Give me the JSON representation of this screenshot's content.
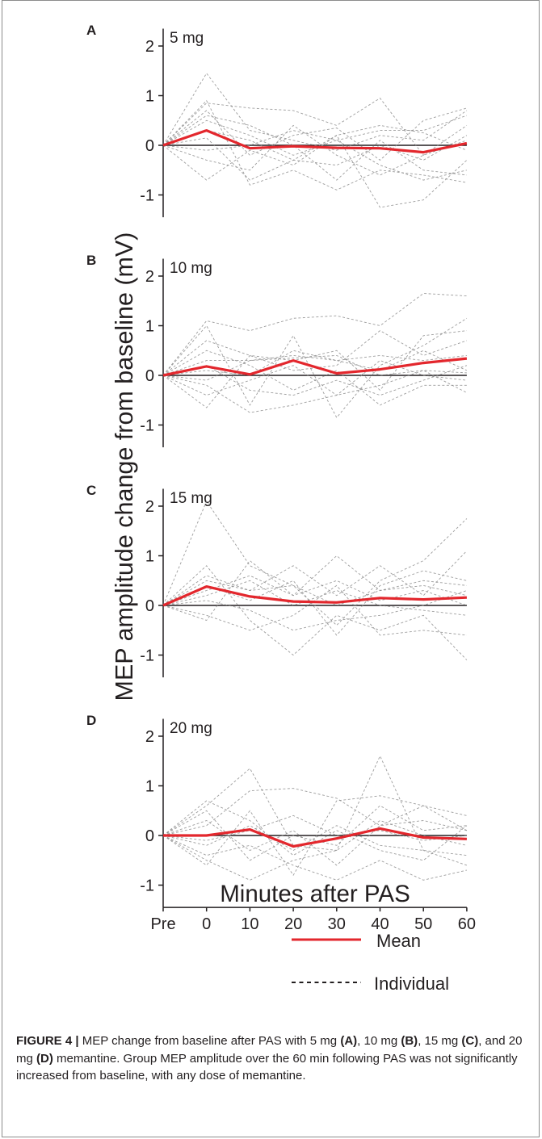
{
  "chart_data": {
    "type": "line",
    "ylabel": "MEP amplitude change from baseline (mV)",
    "xlabel": "Minutes after PAS",
    "x_tick_labels": [
      "Pre",
      "0",
      "10",
      "20",
      "30",
      "40",
      "50",
      "60"
    ],
    "y_ticks": [
      "2",
      "1",
      "0",
      "-1"
    ],
    "ylim": [
      -1.45,
      2.35
    ],
    "legend": {
      "placement": "bottom-right",
      "mean_label": "Mean",
      "individual_label": "Individual"
    },
    "colors": {
      "mean": "#e3272d",
      "individual": "#8c8c8c",
      "zero_line": "#231f20"
    },
    "panels": [
      {
        "letter": "A",
        "dose_label": "5 mg",
        "mean": [
          0,
          0.3,
          -0.06,
          -0.02,
          -0.05,
          -0.06,
          -0.14,
          0.04
        ],
        "individuals": [
          [
            0,
            1.45,
            0.3,
            0.1,
            -0.1,
            0.2,
            0.1,
            0.7
          ],
          [
            0,
            0.9,
            -0.8,
            -0.5,
            -0.9,
            -0.5,
            -0.6,
            -0.75
          ],
          [
            0,
            0.85,
            0.75,
            0.7,
            0.4,
            0.95,
            -0.2,
            0.4
          ],
          [
            0,
            0.7,
            -0.2,
            0.2,
            0.35,
            -0.3,
            0.5,
            0.75
          ],
          [
            0,
            -0.7,
            -0.1,
            -0.4,
            0.2,
            -1.25,
            -1.1,
            -0.3
          ],
          [
            0,
            0.3,
            0.1,
            -0.3,
            -0.4,
            0.0,
            -0.3,
            0.2
          ],
          [
            0,
            0.6,
            0.4,
            0.0,
            -0.7,
            0.1,
            -0.5,
            -0.6
          ],
          [
            0,
            -0.3,
            -0.5,
            0.4,
            -0.2,
            -0.6,
            -0.2,
            0.1
          ],
          [
            0,
            0.15,
            -0.7,
            -0.3,
            0.2,
            0.4,
            0.25,
            -0.1
          ],
          [
            0,
            0.5,
            0.2,
            -0.2,
            0.1,
            -0.4,
            -0.7,
            -0.5
          ],
          [
            0,
            -0.1,
            0.0,
            0.3,
            0.1,
            0.3,
            0.3,
            0.6
          ]
        ]
      },
      {
        "letter": "B",
        "dose_label": "10 mg",
        "mean": [
          0,
          0.18,
          0.02,
          0.3,
          0.04,
          0.12,
          0.25,
          0.34
        ],
        "individuals": [
          [
            0,
            1.1,
            0.9,
            1.15,
            1.2,
            1.0,
            1.65,
            1.6
          ],
          [
            0,
            1.0,
            -0.6,
            0.8,
            -0.85,
            0.2,
            0.6,
            1.15
          ],
          [
            0,
            -0.2,
            -0.75,
            -0.6,
            -0.4,
            -0.2,
            0.1,
            -0.35
          ],
          [
            0,
            -0.65,
            0.4,
            0.3,
            0.5,
            -0.3,
            0.8,
            0.9
          ],
          [
            0,
            0.5,
            0.2,
            -0.3,
            0.1,
            -0.6,
            -0.2,
            -0.2
          ],
          [
            0,
            0.3,
            0.3,
            0.4,
            0.3,
            0.4,
            0.3,
            0.4
          ],
          [
            0,
            -0.4,
            -0.1,
            0.2,
            -0.4,
            0.3,
            0.0,
            -0.1
          ],
          [
            0,
            0.7,
            0.4,
            0.1,
            0.2,
            0.9,
            0.4,
            0.7
          ],
          [
            0,
            0.2,
            -0.3,
            -0.4,
            -0.1,
            -0.4,
            -0.1,
            0.2
          ],
          [
            0,
            0.1,
            0.0,
            0.5,
            0.3,
            0.1,
            0.5,
            0.1
          ],
          [
            0,
            -0.1,
            0.3,
            0.35,
            0.4,
            0.0,
            0.1,
            0.05
          ]
        ]
      },
      {
        "letter": "C",
        "dose_label": "15 mg",
        "mean": [
          0,
          0.38,
          0.18,
          0.08,
          0.06,
          0.15,
          0.12,
          0.16
        ],
        "individuals": [
          [
            0,
            2.1,
            0.8,
            0.4,
            -0.4,
            0.5,
            0.9,
            1.75
          ],
          [
            0,
            0.8,
            -0.3,
            -1.0,
            -0.2,
            -0.5,
            -0.2,
            -1.1
          ],
          [
            0,
            -0.3,
            0.9,
            0.2,
            1.0,
            0.3,
            0.5,
            0.4
          ],
          [
            0,
            0.6,
            0.3,
            0.8,
            0.2,
            0.8,
            0.2,
            1.1
          ],
          [
            0,
            -0.2,
            -0.5,
            -0.2,
            0.4,
            -0.6,
            -0.5,
            -0.6
          ],
          [
            0,
            0.4,
            0.1,
            0.5,
            -0.6,
            0.4,
            0.7,
            0.5
          ],
          [
            0,
            0.2,
            0.5,
            0.0,
            0.3,
            0.0,
            -0.1,
            -0.2
          ],
          [
            0,
            0.5,
            0.3,
            0.4,
            0.0,
            0.3,
            0.4,
            0.2
          ],
          [
            0,
            0.1,
            -0.1,
            -0.5,
            -0.3,
            -0.2,
            0.0,
            0.3
          ],
          [
            0,
            0.3,
            0.6,
            0.2,
            0.5,
            0.1,
            0.3,
            0.0
          ]
        ]
      },
      {
        "letter": "D",
        "dose_label": "20 mg",
        "mean": [
          0,
          0.0,
          0.12,
          -0.22,
          -0.06,
          0.14,
          -0.04,
          -0.07
        ],
        "individuals": [
          [
            0,
            0.6,
            1.35,
            -0.2,
            -0.3,
            1.6,
            -0.3,
            -0.6
          ],
          [
            0,
            -0.6,
            0.5,
            -0.8,
            0.7,
            0.8,
            0.6,
            0.1
          ],
          [
            0,
            0.2,
            0.9,
            0.95,
            0.75,
            0.2,
            0.6,
            0.4
          ],
          [
            0,
            -0.4,
            -0.2,
            -0.6,
            -0.9,
            -0.5,
            -0.9,
            -0.7
          ],
          [
            0,
            0.7,
            0.3,
            -0.4,
            0.1,
            -0.3,
            -0.5,
            0.2
          ],
          [
            0,
            -0.5,
            -0.9,
            -0.5,
            -0.3,
            0.3,
            0.0,
            -0.2
          ],
          [
            0,
            0.3,
            -0.3,
            0.1,
            -0.6,
            0.2,
            0.3,
            0.1
          ],
          [
            0,
            -0.2,
            0.2,
            -0.3,
            0.2,
            -0.2,
            -0.3,
            -0.4
          ],
          [
            0,
            0.5,
            -0.5,
            0.0,
            -0.2,
            0.6,
            0.1,
            0.2
          ],
          [
            0,
            -0.1,
            0.1,
            0.4,
            0.0,
            0.1,
            -0.1,
            0.0
          ]
        ]
      }
    ]
  },
  "caption": {
    "figure_label": "FIGURE 4 |",
    "text_1": " MEP change from baseline after PAS with 5 mg ",
    "ref_a": "(A)",
    "text_2": ", 10 mg ",
    "ref_b": "(B)",
    "text_3": ", 15 mg ",
    "ref_c": "(C)",
    "text_4": ", and 20 mg ",
    "ref_d": "(D)",
    "text_5": " memantine. Group MEP amplitude over the 60 min following PAS was not significantly increased from baseline, with any dose of memantine."
  }
}
